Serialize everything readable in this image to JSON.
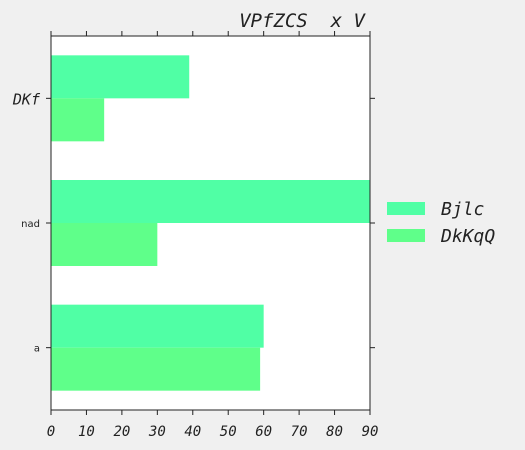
{
  "chart_data": {
    "type": "bar",
    "orientation": "horizontal",
    "title": "VPfZCS  x V",
    "xlabel": "",
    "ylabel": "",
    "xlim": [
      0,
      90
    ],
    "x_ticks": [
      0,
      10,
      20,
      30,
      40,
      50,
      60,
      70,
      80,
      90
    ],
    "x_tick_labels": [
      "0",
      "10",
      "20",
      "30",
      "40",
      "50",
      "60",
      "70",
      "80",
      "90"
    ],
    "categories": [
      "DKf",
      "nad",
      "a"
    ],
    "series": [
      {
        "name": "Bjlc",
        "values": [
          39,
          90,
          60
        ],
        "color": "#50ffa5"
      },
      {
        "name": "DkKqQ",
        "values": [
          15,
          30,
          59
        ],
        "color": "#5fff8a"
      }
    ],
    "grid": false,
    "legend_position": "right"
  }
}
